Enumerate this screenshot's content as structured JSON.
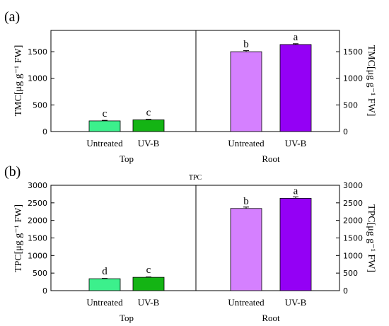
{
  "chart_data": [
    {
      "panel_label": "(a)",
      "type": "bar",
      "title": "",
      "ylabel_left": "TMC[μg g⁻¹ FW]",
      "ylabel_right": "TMC[μg g⁻¹ FW]",
      "ylim": [
        0,
        1900
      ],
      "yticks": [
        0,
        500,
        1000,
        1500
      ],
      "groups": [
        {
          "name": "Top",
          "bars": [
            {
              "category": "Untreated",
              "value": 200,
              "error": 10,
              "letter": "c",
              "color": "#3cf08c"
            },
            {
              "category": "UV-B",
              "value": 220,
              "error": 10,
              "letter": "c",
              "color": "#14b414"
            }
          ]
        },
        {
          "name": "Root",
          "bars": [
            {
              "category": "Untreated",
              "value": 1500,
              "error": 20,
              "letter": "b",
              "color": "#d580ff"
            },
            {
              "category": "UV-B",
              "value": 1635,
              "error": 15,
              "letter": "a",
              "color": "#9400f5"
            }
          ]
        }
      ]
    },
    {
      "panel_label": "(b)",
      "type": "bar",
      "title": "TPC",
      "ylabel_left": "TPC[μg g⁻¹ FW]",
      "ylabel_right": "TPC[μg g⁻¹ FW]",
      "ylim": [
        0,
        3000
      ],
      "yticks": [
        0,
        500,
        1000,
        1500,
        2000,
        2500,
        3000
      ],
      "groups": [
        {
          "name": "Top",
          "bars": [
            {
              "category": "Untreated",
              "value": 340,
              "error": 10,
              "letter": "d",
              "color": "#3cf08c"
            },
            {
              "category": "UV-B",
              "value": 380,
              "error": 10,
              "letter": "c",
              "color": "#14b414"
            }
          ]
        },
        {
          "name": "Root",
          "bars": [
            {
              "category": "Untreated",
              "value": 2340,
              "error": 40,
              "letter": "b",
              "color": "#d580ff"
            },
            {
              "category": "UV-B",
              "value": 2630,
              "error": 40,
              "letter": "a",
              "color": "#9400f5"
            }
          ]
        }
      ]
    }
  ]
}
